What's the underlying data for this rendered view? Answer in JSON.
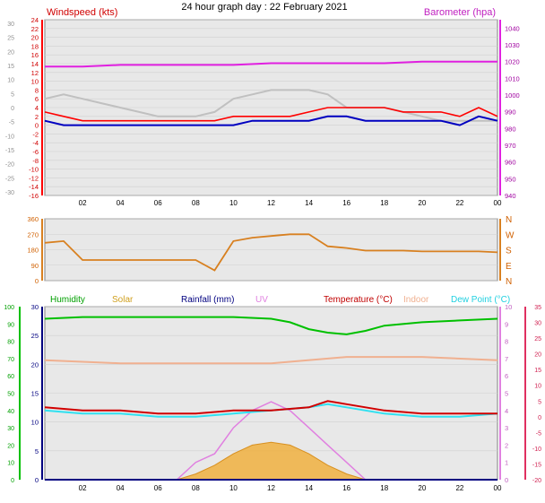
{
  "title": "24 hour graph day : 22 February 2021",
  "chart_data": [
    {
      "type": "line",
      "title": "24 hour graph day : 22 February 2021",
      "x_ticks": [
        "02",
        "04",
        "06",
        "08",
        "10",
        "12",
        "14",
        "16",
        "18",
        "20",
        "22",
        "00"
      ],
      "left_axis": {
        "label": "Windspeed (kts)",
        "ticks": [
          24,
          22,
          20,
          18,
          16,
          14,
          12,
          10,
          8,
          6,
          4,
          2,
          0,
          -2,
          -4,
          -6,
          -8,
          -10,
          -12,
          -14,
          -16
        ],
        "ylim": [
          -16,
          24
        ]
      },
      "left_outer_ticks": [
        30,
        25,
        20,
        15,
        10,
        5,
        0,
        -5,
        -10,
        -15,
        -20,
        -25,
        -30
      ],
      "right_axis": {
        "label": "Barometer (hpa)",
        "ticks": [
          1040,
          1030,
          1020,
          1010,
          1000,
          990,
          980,
          970,
          960,
          950,
          940
        ],
        "ylim": [
          940,
          1045
        ]
      },
      "series": [
        {
          "name": "Barometer (hpa)",
          "color": "#e020e0",
          "x": [
            0,
            2,
            4,
            6,
            8,
            10,
            12,
            14,
            16,
            18,
            20,
            22,
            24
          ],
          "values": [
            1017,
            1017,
            1018,
            1018,
            1018,
            1018,
            1019,
            1019,
            1019,
            1019,
            1020,
            1020,
            1020
          ]
        },
        {
          "color": "#c0c0c0",
          "x": [
            0,
            1,
            2,
            3,
            4,
            5,
            6,
            7,
            8,
            9,
            10,
            11,
            12,
            13,
            14,
            15,
            16,
            17,
            18,
            19,
            20,
            21,
            22,
            23,
            24
          ],
          "values": [
            6,
            7,
            6,
            5,
            4,
            3,
            2,
            2,
            2,
            3,
            6,
            7,
            8,
            8,
            8,
            7,
            4,
            4,
            4,
            3,
            2,
            1,
            1,
            1,
            1
          ]
        },
        {
          "color": "#ff0000",
          "x": [
            0,
            1,
            2,
            3,
            4,
            5,
            6,
            7,
            8,
            9,
            10,
            11,
            12,
            13,
            14,
            15,
            16,
            17,
            18,
            19,
            20,
            21,
            22,
            23,
            24
          ],
          "values": [
            3,
            2,
            1,
            1,
            1,
            1,
            1,
            1,
            1,
            1,
            2,
            2,
            2,
            2,
            3,
            4,
            4,
            4,
            4,
            3,
            3,
            3,
            2,
            4,
            2
          ]
        },
        {
          "color": "#0000c0",
          "x": [
            0,
            1,
            2,
            3,
            4,
            5,
            6,
            7,
            8,
            9,
            10,
            11,
            12,
            13,
            14,
            15,
            16,
            17,
            18,
            19,
            20,
            21,
            22,
            23,
            24
          ],
          "values": [
            1,
            0,
            0,
            0,
            0,
            0,
            0,
            0,
            0,
            0,
            0,
            1,
            1,
            1,
            1,
            2,
            2,
            1,
            1,
            1,
            1,
            1,
            0,
            2,
            1
          ]
        }
      ]
    },
    {
      "type": "line",
      "left_axis": {
        "ticks": [
          360,
          270,
          180,
          90,
          0
        ],
        "ylim": [
          0,
          360
        ]
      },
      "right_axis": {
        "ticks": [
          "N",
          "W",
          "S",
          "E",
          "N"
        ]
      },
      "x_ticks": [],
      "series": [
        {
          "color": "#d88020",
          "x": [
            0,
            1,
            2,
            3,
            4,
            5,
            6,
            7,
            8,
            9,
            10,
            11,
            12,
            13,
            14,
            15,
            16,
            17,
            18,
            19,
            20,
            21,
            22,
            23,
            24
          ],
          "values": [
            220,
            230,
            120,
            120,
            120,
            120,
            120,
            120,
            120,
            60,
            230,
            250,
            260,
            270,
            270,
            200,
            190,
            175,
            175,
            175,
            170,
            170,
            170,
            170,
            165
          ]
        }
      ]
    },
    {
      "type": "line",
      "legend": [
        "Humidity",
        "Solar",
        "Rainfall (mm)",
        "UV",
        "Temperature (°C)",
        "Indoor",
        "Dew Point (°C)"
      ],
      "legend_colors": [
        "#00a000",
        "#d0a020",
        "#000080",
        "#e080e0",
        "#c00000",
        "#f0b090",
        "#20d0e0"
      ],
      "left_outer_ticks": [
        100,
        90,
        80,
        70,
        60,
        50,
        40,
        30,
        20,
        10,
        0
      ],
      "left_axis": {
        "ticks": [
          30,
          25,
          20,
          15,
          10,
          5,
          0
        ],
        "ylim": [
          0,
          30
        ]
      },
      "right_axis": {
        "ticks": [
          10,
          9,
          8,
          7,
          6,
          5,
          4,
          3,
          2,
          1,
          0
        ],
        "ylim": [
          0,
          10
        ]
      },
      "right_outer_ticks": [
        35,
        30,
        25,
        20,
        15,
        10,
        5,
        0,
        -5,
        -10,
        -15,
        -20
      ],
      "x_ticks": [
        "02",
        "04",
        "06",
        "08",
        "10",
        "12",
        "14",
        "16",
        "18",
        "20",
        "22",
        "00"
      ],
      "series": [
        {
          "name": "Humidity",
          "color": "#00c000",
          "x": [
            0,
            2,
            4,
            6,
            8,
            10,
            12,
            13,
            14,
            15,
            16,
            17,
            18,
            20,
            22,
            24
          ],
          "values": [
            93,
            94,
            94,
            94,
            94,
            94,
            93,
            91,
            87,
            85,
            84,
            86,
            89,
            91,
            92,
            93
          ]
        },
        {
          "name": "Indoor",
          "color": "#f0b090",
          "x": [
            0,
            4,
            8,
            12,
            16,
            20,
            24
          ],
          "values": [
            18,
            17,
            17,
            17,
            19,
            19,
            18
          ]
        },
        {
          "name": "Temperature (°C)",
          "color": "#d00000",
          "x": [
            0,
            2,
            4,
            6,
            8,
            10,
            12,
            14,
            15,
            16,
            18,
            20,
            22,
            24
          ],
          "values": [
            3,
            2,
            2,
            1,
            1,
            2,
            2,
            3,
            5,
            4,
            2,
            1,
            1,
            1
          ]
        },
        {
          "name": "Dew Point (°C)",
          "color": "#30e0f0",
          "x": [
            0,
            2,
            4,
            6,
            8,
            10,
            12,
            14,
            15,
            16,
            18,
            20,
            22,
            24
          ],
          "values": [
            2,
            1,
            1,
            0,
            0,
            1,
            2,
            3,
            4,
            3,
            1,
            0,
            0,
            1
          ]
        },
        {
          "name": "UV",
          "color": "#e080e0",
          "x": [
            0,
            7,
            8,
            9,
            10,
            11,
            12,
            13,
            14,
            15,
            16,
            17,
            24
          ],
          "values": [
            0,
            0,
            1,
            1.5,
            3,
            4,
            4.5,
            4,
            3,
            2,
            1,
            0,
            0
          ]
        },
        {
          "name": "Solar",
          "color": "#e8a020",
          "x": [
            0,
            7,
            8,
            9,
            10,
            11,
            12,
            13,
            14,
            15,
            16,
            17,
            24
          ],
          "values": [
            0,
            0,
            1,
            2.5,
            4.5,
            6,
            6.5,
            6,
            4.5,
            2.5,
            1,
            0,
            0
          ]
        },
        {
          "name": "Rainfall (mm)",
          "color": "#000080",
          "x": [
            0,
            24
          ],
          "values": [
            0,
            0
          ]
        }
      ]
    }
  ]
}
